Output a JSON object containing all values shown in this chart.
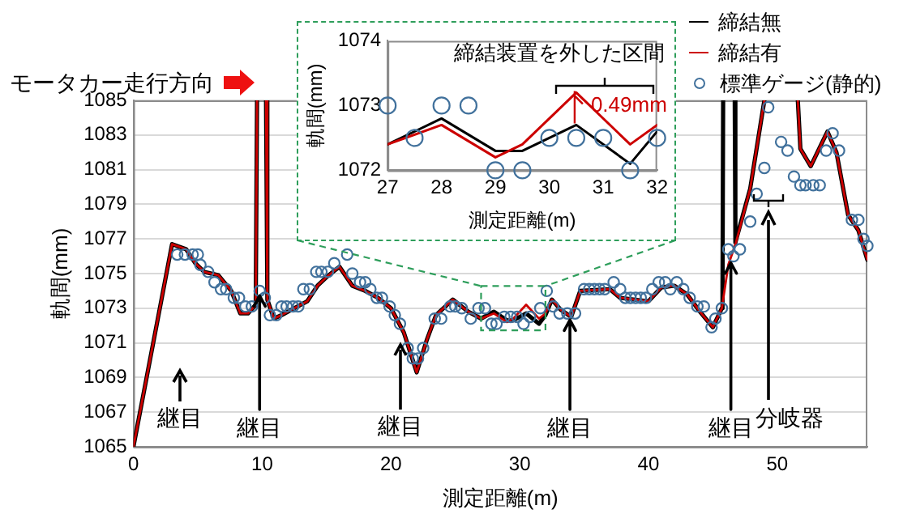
{
  "chart_data": [
    {
      "type": "line",
      "xlabel": "測定距離(m)",
      "ylabel": "軌間(mm)",
      "xlim": [
        0,
        57
      ],
      "xticks": [
        0,
        10,
        20,
        30,
        40,
        50
      ],
      "ylim": [
        1065,
        1085
      ],
      "yticks": [
        1065,
        1067,
        1069,
        1071,
        1073,
        1075,
        1077,
        1079,
        1081,
        1083,
        1085
      ],
      "grid": "y",
      "legend": "top right",
      "series": [
        {
          "name": "締結無",
          "type": "line",
          "color": "#000000",
          "x": [
            0,
            3.0,
            4.1,
            4.8,
            5.5,
            6.6,
            7.6,
            8.3,
            8.9,
            9.5,
            9.6,
            9.95,
            10.3,
            10.4,
            10.9,
            11.5,
            12.5,
            13.5,
            14.3,
            15.0,
            16.0,
            17.0,
            18.0,
            19.0,
            20.0,
            21.0,
            22.0,
            22.8,
            23.5,
            24.8,
            26.0,
            27,
            28,
            29,
            29.5,
            30.5,
            31.5,
            32,
            32.5,
            33.2,
            34,
            34.7,
            37,
            37.8,
            40,
            41,
            42,
            43,
            44,
            45,
            45.7,
            45.75,
            45.8,
            46.2,
            46.7,
            46.75,
            47.9,
            49.0,
            50.3,
            51.6,
            51.8,
            52.6,
            53.9,
            54.6,
            55.5,
            56.3,
            57
          ],
          "values": [
            1065,
            1076.7,
            1076.4,
            1075.6,
            1075.1,
            1074.9,
            1074.0,
            1072.7,
            1072.7,
            1073.2,
            1085,
            null,
            1085,
            1073.5,
            1072.4,
            1072.6,
            1073.0,
            1073.4,
            1074.3,
            1074.8,
            1075.4,
            1074.3,
            1074.0,
            1073.6,
            1073.0,
            1071.6,
            1069.3,
            1071.2,
            1072.6,
            1073.5,
            1072.8,
            1072.4,
            1072.8,
            1072.3,
            1072.3,
            1072.7,
            1072.1,
            1072.6,
            1073.5,
            1072.9,
            1072.5,
            1074.0,
            1074.1,
            1073.6,
            1073.4,
            1074.2,
            1074.3,
            1073.8,
            1072.8,
            1071.9,
            1073.0,
            1074.0,
            1085,
            null,
            1085,
            1076.8,
            1079.9,
            1085,
            null,
            1085,
            1082.2,
            1081.2,
            1083.2,
            1082.0,
            1078.4,
            1077.5,
            1075.8
          ]
        },
        {
          "name": "締結有",
          "type": "line",
          "color": "#cc0000",
          "x": [
            0,
            3.0,
            4.1,
            4.8,
            5.5,
            6.6,
            7.6,
            8.3,
            8.9,
            9.5,
            9.6,
            9.95,
            10.3,
            10.4,
            10.9,
            11.5,
            12.5,
            13.5,
            14.3,
            15.0,
            16.0,
            17.0,
            18.0,
            19.0,
            20.0,
            21.0,
            22.0,
            22.8,
            23.5,
            24.8,
            26.0,
            27,
            28,
            29,
            29.5,
            30.5,
            31.5,
            32,
            32.5,
            33.2,
            34,
            34.7,
            37,
            37.8,
            40,
            41,
            42,
            43,
            44,
            45,
            45.7,
            46.2,
            46.8,
            47.9,
            49.0,
            50.3,
            51.6,
            51.8,
            52.6,
            53.9,
            54.6,
            55.5,
            56.3,
            57
          ],
          "values": [
            1065,
            1076.7,
            1076.4,
            1075.6,
            1075.1,
            1074.9,
            1074.0,
            1072.7,
            1072.7,
            1073.2,
            1085,
            null,
            1085,
            1073.5,
            1072.4,
            1072.6,
            1073.0,
            1073.4,
            1074.3,
            1074.8,
            1075.4,
            1074.3,
            1074.0,
            1073.6,
            1073.0,
            1071.6,
            1069.3,
            1071.2,
            1072.6,
            1073.5,
            1072.8,
            1072.4,
            1072.7,
            1072.2,
            1072.4,
            1073.2,
            1072.4,
            1072.7,
            1073.5,
            1072.9,
            1072.5,
            1074.0,
            1074.1,
            1073.6,
            1073.4,
            1074.2,
            1074.3,
            1073.8,
            1072.8,
            1071.9,
            1073.0,
            1075.5,
            1076.8,
            1079.9,
            1085,
            null,
            1085,
            1082.2,
            1081.2,
            1083.2,
            1082.0,
            1078.4,
            1077.5,
            1075.8
          ]
        },
        {
          "name": "標準ゲージ(静的)",
          "type": "scatter",
          "marker": "circle",
          "color": "#41719c",
          "x": [
            3.4,
            4.0,
            4.6,
            5.0,
            5.2,
            5.8,
            6.3,
            6.8,
            7.2,
            7.8,
            8.2,
            8.7,
            9.2,
            9.8,
            10.2,
            10.6,
            11.1,
            11.5,
            11.9,
            12.4,
            12.8,
            13.2,
            13.7,
            14.2,
            14.6,
            15.1,
            15.6,
            16.6,
            17.0,
            17.6,
            18.0,
            18.4,
            18.9,
            19.3,
            19.9,
            20.3,
            20.7,
            21.3,
            21.7,
            22.1,
            22.5,
            23.4,
            23.9,
            24.6,
            25.0,
            25.5,
            26.2,
            26.8,
            27.3,
            27.8,
            28.2,
            28.8,
            29.3,
            29.8,
            30.3,
            30.8,
            31.6,
            32.1,
            32.6,
            33.1,
            33.7,
            34.3,
            35.0,
            35.4,
            35.8,
            36.2,
            36.6,
            37.3,
            37.8,
            38.2,
            38.6,
            39.0,
            39.4,
            39.8,
            40.3,
            40.8,
            41.3,
            41.7,
            42.2,
            42.7,
            43.2,
            43.8,
            44.3,
            44.9,
            45.2,
            45.7,
            46.2,
            46.6,
            47.1,
            47.9,
            48.4,
            49.0,
            49.3,
            50.3,
            50.8,
            51.3,
            51.8,
            52.2,
            52.8,
            53.3,
            53.8,
            54.3,
            54.8,
            55.8,
            56.3,
            56.7,
            57.0
          ],
          "values": [
            1076.1,
            1076.1,
            1076.1,
            1076.1,
            1075.5,
            1075.1,
            1074.5,
            1074.1,
            1074.1,
            1073.6,
            1073.6,
            1073.1,
            1073.1,
            1074.0,
            1073.6,
            1072.6,
            1072.6,
            1073.1,
            1073.1,
            1073.1,
            1073.1,
            1074.1,
            1074.1,
            1075.1,
            1075.1,
            1075.1,
            1075.6,
            1076.1,
            1075.0,
            1074.5,
            1074.5,
            1074.1,
            1073.6,
            1073.6,
            1073.1,
            1072.6,
            1072.1,
            1070.7,
            1070.1,
            1070.1,
            1070.7,
            1072.4,
            1072.4,
            1073.1,
            1073.1,
            1073.0,
            1072.4,
            1073.0,
            1073.0,
            1072.1,
            1072.1,
            1072.5,
            1072.5,
            1072.5,
            1072.1,
            1072.5,
            1073.0,
            1074.0,
            1073.1,
            1072.7,
            1072.7,
            1072.7,
            1074.1,
            1074.1,
            1074.1,
            1074.1,
            1074.1,
            1074.5,
            1074.1,
            1073.6,
            1073.6,
            1073.6,
            1073.6,
            1073.6,
            1074.1,
            1074.5,
            1074.5,
            1074.1,
            1074.5,
            1074.1,
            1073.6,
            1073.1,
            1073.1,
            1071.9,
            1072.4,
            1073.0,
            1076.4,
            1076.0,
            1076.4,
            1078.0,
            1079.6,
            1081.1,
            1084.6,
            1082.6,
            1082.1,
            1080.6,
            1080.1,
            1080.1,
            1080.1,
            1080.1,
            1082.1,
            1083.1,
            1082.1,
            1078.1,
            1078.1,
            1077.0,
            1076.6
          ]
        }
      ],
      "annotations": [
        "モータカー走行方向",
        "継目",
        {
          "text": "継目",
          "x": 9.8,
          "y": 1074.0
        },
        "継目",
        {
          "text": "継目",
          "x": 33.9,
          "y": 1072.6
        },
        {
          "text": "継目",
          "x": 46.4,
          "y": 1075.9
        },
        "分岐器"
      ]
    },
    {
      "type": "line",
      "xlabel": "測定距離(m)",
      "ylabel": "軌間(mm)",
      "xlim": [
        27,
        32
      ],
      "xticks": [
        27,
        28,
        29,
        30,
        31,
        32
      ],
      "ylim": [
        1072,
        1074
      ],
      "yticks": [
        1072,
        1073,
        1074
      ],
      "series": [
        {
          "type": "line",
          "color": "#000000",
          "x": [
            27,
            28,
            29,
            29.5,
            30.5,
            31.5,
            32
          ],
          "values": [
            1072.4,
            1072.8,
            1072.3,
            1072.3,
            1072.7,
            1072.1,
            1072.6
          ]
        },
        {
          "type": "line",
          "color": "#cc0000",
          "x": [
            27,
            28,
            29,
            29.5,
            30.5,
            31.5,
            32
          ],
          "values": [
            1072.4,
            1072.7,
            1072.2,
            1072.4,
            1073.2,
            1072.4,
            1072.7
          ]
        },
        {
          "type": "scatter",
          "marker": "circle",
          "color": "#41719c",
          "x": [
            27,
            27.5,
            28,
            28.5,
            29,
            29.5,
            30,
            30.5,
            31,
            31.5,
            32
          ],
          "values": [
            1073,
            1072.5,
            1073,
            1073,
            1072,
            1072,
            1072.5,
            1072.5,
            1072.5,
            1072,
            1072.5
          ]
        }
      ],
      "annotations": [
        "締結装置を外した区間",
        {
          "text": "0.49mm",
          "x": 30.5,
          "y": 1073.2
        }
      ]
    }
  ]
}
